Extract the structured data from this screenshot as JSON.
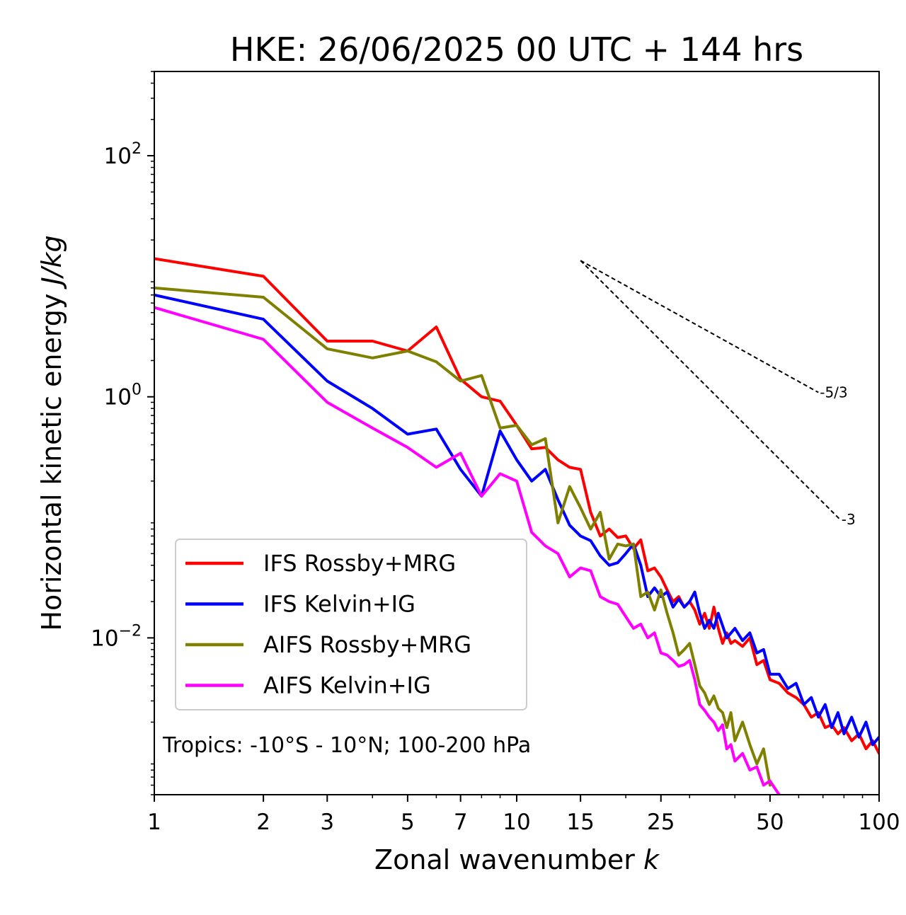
{
  "chart_data": {
    "type": "line",
    "title": "HKE: 26/06/2025 00 UTC + 144 hrs",
    "xlabel": "Zonal wavenumber",
    "xlabel_var": "k",
    "ylabel": "Horizontal kinetic energy",
    "ylabel_units": "J/kg",
    "xscale": "log",
    "yscale": "log",
    "xlim": [
      1,
      100
    ],
    "ylim": [
      0.0005,
      500
    ],
    "x_ticks": [
      1,
      2,
      3,
      5,
      7,
      10,
      15,
      25,
      50,
      100
    ],
    "x_tick_labels": [
      "1",
      "2",
      "3",
      "5",
      "7",
      "10",
      "15",
      "25",
      "50",
      "100"
    ],
    "y_ticks": [
      100,
      1,
      0.01
    ],
    "y_tick_labels": [
      {
        "base": "10",
        "exp": "2"
      },
      {
        "base": "10",
        "exp": "0"
      },
      {
        "base": "10",
        "exp": "−2"
      }
    ],
    "grid": false,
    "legend_position": "lower-left",
    "annotation": "Tropics: -10°S - 10°N; 100-200 hPa",
    "reference_slopes": [
      {
        "label": "-5/3",
        "exponent": -1.6667,
        "x_start": 15,
        "x_end": 68,
        "y_start": 13.5
      },
      {
        "label": "-3",
        "exponent": -3,
        "x_start": 15,
        "x_end": 78,
        "y_start": 13.5
      }
    ],
    "series": [
      {
        "name": "IFS Rossby+MRG",
        "color": "#ff0000",
        "points": [
          [
            1,
            14
          ],
          [
            2,
            10
          ],
          [
            3,
            2.9
          ],
          [
            4,
            2.9
          ],
          [
            5,
            2.4
          ],
          [
            6,
            3.8
          ],
          [
            7,
            1.4
          ],
          [
            8,
            1.0
          ],
          [
            9,
            0.92
          ],
          [
            10,
            0.58
          ],
          [
            11,
            0.37
          ],
          [
            12,
            0.38
          ],
          [
            13,
            0.3
          ],
          [
            14,
            0.26
          ],
          [
            15,
            0.25
          ],
          [
            16,
            0.11
          ],
          [
            17,
            0.07
          ],
          [
            18,
            0.08
          ],
          [
            19,
            0.068
          ],
          [
            20,
            0.07
          ],
          [
            21,
            0.055
          ],
          [
            22,
            0.065
          ],
          [
            23,
            0.036
          ],
          [
            24,
            0.038
          ],
          [
            25,
            0.032
          ],
          [
            26,
            0.025
          ],
          [
            27,
            0.02
          ],
          [
            28,
            0.022
          ],
          [
            29,
            0.018
          ],
          [
            30,
            0.02
          ],
          [
            31,
            0.017
          ],
          [
            32,
            0.013
          ],
          [
            33,
            0.016
          ],
          [
            34,
            0.012
          ],
          [
            35,
            0.018
          ],
          [
            36,
            0.012
          ],
          [
            37,
            0.009
          ],
          [
            38,
            0.011
          ],
          [
            39,
            0.009
          ],
          [
            40,
            0.0095
          ],
          [
            42,
            0.0085
          ],
          [
            44,
            0.01
          ],
          [
            46,
            0.006
          ],
          [
            48,
            0.0065
          ],
          [
            50,
            0.0045
          ],
          [
            53,
            0.0042
          ],
          [
            56,
            0.0035
          ],
          [
            59,
            0.0032
          ],
          [
            62,
            0.0028
          ],
          [
            65,
            0.0022
          ],
          [
            68,
            0.0024
          ],
          [
            71,
            0.0018
          ],
          [
            74,
            0.0019
          ],
          [
            77,
            0.0016
          ],
          [
            80,
            0.0018
          ],
          [
            84,
            0.0014
          ],
          [
            88,
            0.0016
          ],
          [
            92,
            0.0012
          ],
          [
            96,
            0.0014
          ],
          [
            100,
            0.0011
          ]
        ]
      },
      {
        "name": "IFS Kelvin+IG",
        "color": "#0000ff",
        "points": [
          [
            1,
            7
          ],
          [
            2,
            4.4
          ],
          [
            3,
            1.35
          ],
          [
            4,
            0.8
          ],
          [
            5,
            0.49
          ],
          [
            6,
            0.54
          ],
          [
            7,
            0.25
          ],
          [
            8,
            0.15
          ],
          [
            9,
            0.52
          ],
          [
            10,
            0.3
          ],
          [
            11,
            0.2
          ],
          [
            12,
            0.25
          ],
          [
            13,
            0.14
          ],
          [
            14,
            0.086
          ],
          [
            15,
            0.07
          ],
          [
            16,
            0.064
          ],
          [
            17,
            0.048
          ],
          [
            18,
            0.04
          ],
          [
            19,
            0.042
          ],
          [
            20,
            0.05
          ],
          [
            21,
            0.06
          ],
          [
            22,
            0.04
          ],
          [
            23,
            0.022
          ],
          [
            24,
            0.026
          ],
          [
            25,
            0.022
          ],
          [
            26,
            0.024
          ],
          [
            27,
            0.018
          ],
          [
            28,
            0.021
          ],
          [
            29,
            0.018
          ],
          [
            30,
            0.02
          ],
          [
            31,
            0.024
          ],
          [
            32,
            0.016
          ],
          [
            33,
            0.012
          ],
          [
            34,
            0.014
          ],
          [
            35,
            0.012
          ],
          [
            36,
            0.016
          ],
          [
            38,
            0.01
          ],
          [
            40,
            0.012
          ],
          [
            42,
            0.0095
          ],
          [
            44,
            0.011
          ],
          [
            46,
            0.0075
          ],
          [
            48,
            0.008
          ],
          [
            50,
            0.005
          ],
          [
            53,
            0.005
          ],
          [
            56,
            0.0038
          ],
          [
            59,
            0.0042
          ],
          [
            62,
            0.0028
          ],
          [
            65,
            0.0032
          ],
          [
            68,
            0.0022
          ],
          [
            71,
            0.0028
          ],
          [
            74,
            0.0018
          ],
          [
            77,
            0.0024
          ],
          [
            80,
            0.0016
          ],
          [
            84,
            0.0022
          ],
          [
            88,
            0.0015
          ],
          [
            92,
            0.002
          ],
          [
            96,
            0.0013
          ],
          [
            100,
            0.0015
          ]
        ]
      },
      {
        "name": "AIFS Rossby+MRG",
        "color": "#808000",
        "points": [
          [
            1,
            8
          ],
          [
            2,
            6.7
          ],
          [
            3,
            2.5
          ],
          [
            4,
            2.1
          ],
          [
            5,
            2.4
          ],
          [
            6,
            1.95
          ],
          [
            7,
            1.35
          ],
          [
            8,
            1.5
          ],
          [
            9,
            0.55
          ],
          [
            10,
            0.58
          ],
          [
            11,
            0.4
          ],
          [
            12,
            0.45
          ],
          [
            13,
            0.09
          ],
          [
            14,
            0.18
          ],
          [
            15,
            0.12
          ],
          [
            16,
            0.08
          ],
          [
            17,
            0.11
          ],
          [
            18,
            0.045
          ],
          [
            19,
            0.06
          ],
          [
            20,
            0.058
          ],
          [
            21,
            0.06
          ],
          [
            22,
            0.022
          ],
          [
            23,
            0.024
          ],
          [
            24,
            0.017
          ],
          [
            25,
            0.025
          ],
          [
            26,
            0.016
          ],
          [
            27,
            0.011
          ],
          [
            28,
            0.0072
          ],
          [
            29,
            0.008
          ],
          [
            30,
            0.009
          ],
          [
            31,
            0.006
          ],
          [
            32,
            0.004
          ],
          [
            33,
            0.0035
          ],
          [
            34,
            0.0028
          ],
          [
            35,
            0.0033
          ],
          [
            36,
            0.0026
          ],
          [
            37,
            0.0024
          ],
          [
            38,
            0.0018
          ],
          [
            39,
            0.0024
          ],
          [
            40,
            0.0014
          ],
          [
            42,
            0.002
          ],
          [
            44,
            0.0013
          ],
          [
            46,
            0.0009
          ],
          [
            48,
            0.0012
          ],
          [
            50,
            0.0006
          ]
        ]
      },
      {
        "name": "AIFS Kelvin+IG",
        "color": "#ff00ff",
        "points": [
          [
            1,
            5.5
          ],
          [
            2,
            3.0
          ],
          [
            3,
            0.9
          ],
          [
            4,
            0.55
          ],
          [
            5,
            0.38
          ],
          [
            6,
            0.26
          ],
          [
            7,
            0.34
          ],
          [
            8,
            0.15
          ],
          [
            9,
            0.23
          ],
          [
            10,
            0.2
          ],
          [
            11,
            0.075
          ],
          [
            12,
            0.058
          ],
          [
            13,
            0.05
          ],
          [
            14,
            0.032
          ],
          [
            15,
            0.038
          ],
          [
            16,
            0.036
          ],
          [
            17,
            0.022
          ],
          [
            18,
            0.02
          ],
          [
            19,
            0.019
          ],
          [
            20,
            0.015
          ],
          [
            21,
            0.012
          ],
          [
            22,
            0.013
          ],
          [
            23,
            0.01
          ],
          [
            24,
            0.011
          ],
          [
            25,
            0.0075
          ],
          [
            26,
            0.0072
          ],
          [
            27,
            0.0065
          ],
          [
            28,
            0.0058
          ],
          [
            29,
            0.006
          ],
          [
            30,
            0.0065
          ],
          [
            31,
            0.0045
          ],
          [
            32,
            0.0028
          ],
          [
            33,
            0.0025
          ],
          [
            34,
            0.0022
          ],
          [
            35,
            0.002
          ],
          [
            36,
            0.0017
          ],
          [
            37,
            0.0019
          ],
          [
            38,
            0.0012
          ],
          [
            39,
            0.0013
          ],
          [
            40,
            0.00095
          ],
          [
            42,
            0.0011
          ],
          [
            44,
            0.0008
          ],
          [
            46,
            0.00085
          ],
          [
            48,
            0.0006
          ],
          [
            50,
            0.00065
          ],
          [
            53,
            0.0005
          ],
          [
            56,
            0.00045
          ]
        ]
      }
    ]
  }
}
